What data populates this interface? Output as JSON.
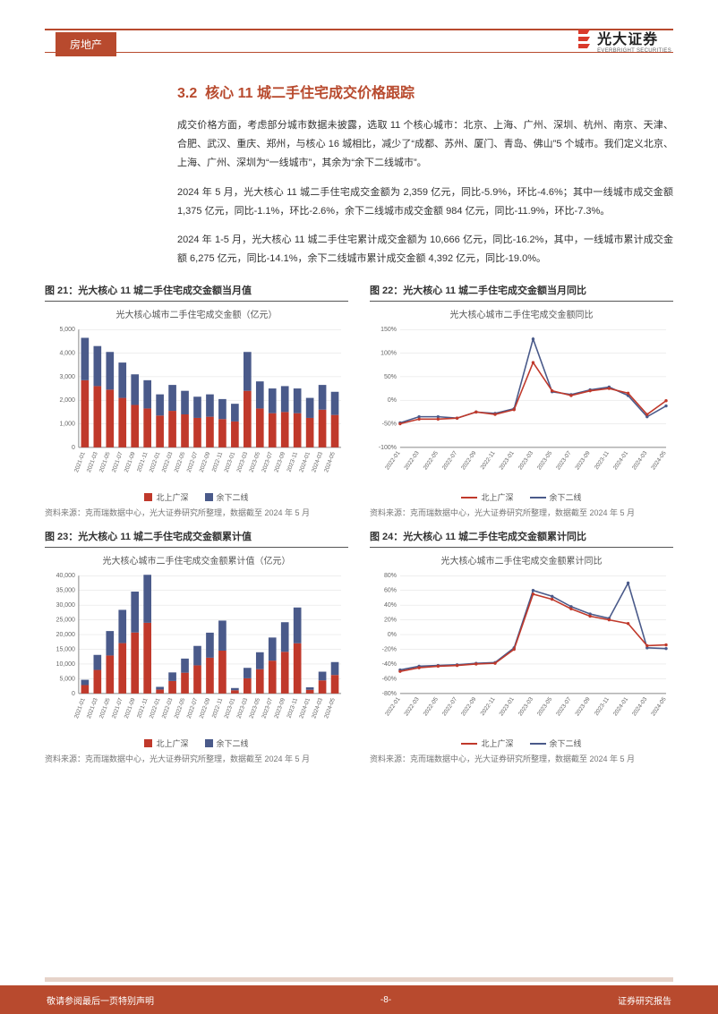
{
  "header": {
    "category": "房地产",
    "logo_cn": "光大证券",
    "logo_en": "EVERBRIGHT SECURITIES"
  },
  "section": {
    "number": "3.2",
    "title": "核心 11 城二手住宅成交价格跟踪"
  },
  "paragraphs": [
    "成交价格方面，考虑部分城市数据未披露，选取 11 个核心城市：北京、上海、广州、深圳、杭州、南京、天津、合肥、武汉、重庆、郑州，与核心 16 城相比，减少了“成都、苏州、厦门、青岛、佛山”5 个城市。我们定义北京、上海、广州、深圳为“一线城市”，其余为“余下二线城市”。",
    "2024 年 5 月，光大核心 11 城二手住宅成交金额为 2,359 亿元，同比-5.9%，环比-4.6%；其中一线城市成交金额 1,375 亿元，同比-1.1%，环比-2.6%，余下二线城市成交金额 984 亿元，同比-11.9%，环比-7.3%。",
    "2024 年 1-5 月，光大核心 11 城二手住宅累计成交金额为 10,666 亿元，同比-16.2%，其中，一线城市累计成交金额 6,275 亿元，同比-14.1%，余下二线城市累计成交金额 4,392 亿元，同比-19.0%。"
  ],
  "charts": {
    "c21": {
      "fig_label": "图 21：光大核心 11 城二手住宅成交金额当月值",
      "inner_title": "光大核心城市二手住宅成交金额（亿元）",
      "type": "stacked-bar",
      "x_labels": [
        "2021-01",
        "2021-03",
        "2021-05",
        "2021-07",
        "2021-09",
        "2021-11",
        "2022-01",
        "2022-03",
        "2022-05",
        "2022-07",
        "2022-09",
        "2022-11",
        "2023-01",
        "2023-03",
        "2023-05",
        "2023-07",
        "2023-09",
        "2023-11",
        "2024-01",
        "2024-03",
        "2024-05"
      ],
      "series_a_label": "北上广深",
      "series_b_label": "余下二线",
      "series_a": [
        2850,
        2600,
        2450,
        2100,
        1800,
        1650,
        1350,
        1550,
        1400,
        1250,
        1300,
        1200,
        1100,
        2400,
        1650,
        1450,
        1500,
        1450,
        1250,
        1600,
        1375
      ],
      "series_b": [
        1800,
        1700,
        1600,
        1500,
        1300,
        1200,
        900,
        1100,
        1000,
        900,
        950,
        850,
        750,
        1650,
        1150,
        1050,
        1100,
        1050,
        850,
        1050,
        984
      ],
      "ylim": [
        0,
        5000
      ],
      "ytick_step": 1000,
      "color_a": "#c0392b",
      "color_b": "#4a5a8a",
      "grid_color": "#dddddd",
      "axis_color": "#888888",
      "label_fontsize": 7
    },
    "c22": {
      "fig_label": "图 22：光大核心 11 城二手住宅成交金额当月同比",
      "inner_title": "光大核心城市二手住宅成交金额同比",
      "type": "line",
      "x_labels": [
        "2022-01",
        "2022-03",
        "2022-05",
        "2022-07",
        "2022-09",
        "2022-11",
        "2023-01",
        "2023-03",
        "2023-05",
        "2023-07",
        "2023-09",
        "2023-11",
        "2024-01",
        "2024-03",
        "2024-05"
      ],
      "ylim": [
        -100,
        150
      ],
      "yticks": [
        -100,
        -50,
        0,
        50,
        100,
        150
      ],
      "series_a_label": "北上广深",
      "series_b_label": "余下二线",
      "series_a": [
        -50,
        -40,
        -40,
        -38,
        -25,
        -30,
        -20,
        80,
        20,
        10,
        20,
        25,
        15,
        -30,
        -1
      ],
      "series_b": [
        -48,
        -35,
        -35,
        -38,
        -25,
        -28,
        -18,
        130,
        18,
        12,
        22,
        28,
        10,
        -35,
        -12
      ],
      "color_a": "#c0392b",
      "color_b": "#4a5a8a",
      "line_width": 1.6,
      "grid_color": "#dddddd",
      "axis_color": "#888888",
      "label_fontsize": 7
    },
    "c23": {
      "fig_label": "图 23：光大核心 11 城二手住宅成交金额累计值",
      "inner_title": "光大核心城市二手住宅成交金额累计值（亿元）",
      "type": "stacked-bar",
      "x_labels": [
        "2021-01",
        "2021-03",
        "2021-05",
        "2021-07",
        "2021-09",
        "2021-11",
        "2022-01",
        "2022-03",
        "2022-05",
        "2022-07",
        "2022-09",
        "2022-11",
        "2023-01",
        "2023-03",
        "2023-05",
        "2023-07",
        "2023-09",
        "2023-11",
        "2024-01",
        "2024-03",
        "2024-05"
      ],
      "series_a_label": "北上广深",
      "series_b_label": "余下二线",
      "series_a": [
        2850,
        8000,
        12900,
        17100,
        20700,
        24000,
        1350,
        4250,
        7050,
        9550,
        12150,
        14550,
        1100,
        5150,
        8250,
        11150,
        14150,
        17050,
        1250,
        4450,
        6275
      ],
      "series_b": [
        1800,
        5100,
        8300,
        11300,
        13900,
        16300,
        900,
        2900,
        4800,
        6600,
        8500,
        10200,
        750,
        3550,
        5750,
        7850,
        10050,
        12150,
        850,
        2950,
        4392
      ],
      "ylim": [
        0,
        40000
      ],
      "ytick_step": 5000,
      "color_a": "#c0392b",
      "color_b": "#4a5a8a",
      "grid_color": "#dddddd",
      "axis_color": "#888888",
      "label_fontsize": 7
    },
    "c24": {
      "fig_label": "图 24：光大核心 11 城二手住宅成交金额累计同比",
      "inner_title": "光大核心城市二手住宅成交金额累计同比",
      "type": "line",
      "x_labels": [
        "2022-01",
        "2022-03",
        "2022-05",
        "2022-07",
        "2022-09",
        "2022-11",
        "2023-01",
        "2023-03",
        "2023-05",
        "2023-07",
        "2023-09",
        "2023-11",
        "2024-01",
        "2024-03",
        "2024-05"
      ],
      "ylim": [
        -80,
        80
      ],
      "yticks": [
        -80,
        -60,
        -40,
        -20,
        0,
        20,
        40,
        60,
        80
      ],
      "series_a_label": "北上广深",
      "series_b_label": "余下二线",
      "series_a": [
        -50,
        -45,
        -43,
        -42,
        -40,
        -39,
        -20,
        55,
        48,
        35,
        25,
        20,
        15,
        -15,
        -14
      ],
      "series_b": [
        -48,
        -43,
        -42,
        -41,
        -39,
        -38,
        -18,
        60,
        52,
        38,
        28,
        22,
        70,
        -18,
        -19
      ],
      "color_a": "#c0392b",
      "color_b": "#4a5a8a",
      "line_width": 1.6,
      "grid_color": "#dddddd",
      "axis_color": "#888888",
      "label_fontsize": 7
    },
    "source": "资料来源：克而瑞数据中心，光大证券研究所整理，数据截至 2024 年 5 月"
  },
  "footer": {
    "left": "敬请参阅最后一页特别声明",
    "center": "-8-",
    "right": "证券研究报告"
  },
  "colors": {
    "brand": "#b84a2e",
    "text": "#333333",
    "bg": "#ffffff",
    "footer_bar": "#e6d3c9"
  }
}
